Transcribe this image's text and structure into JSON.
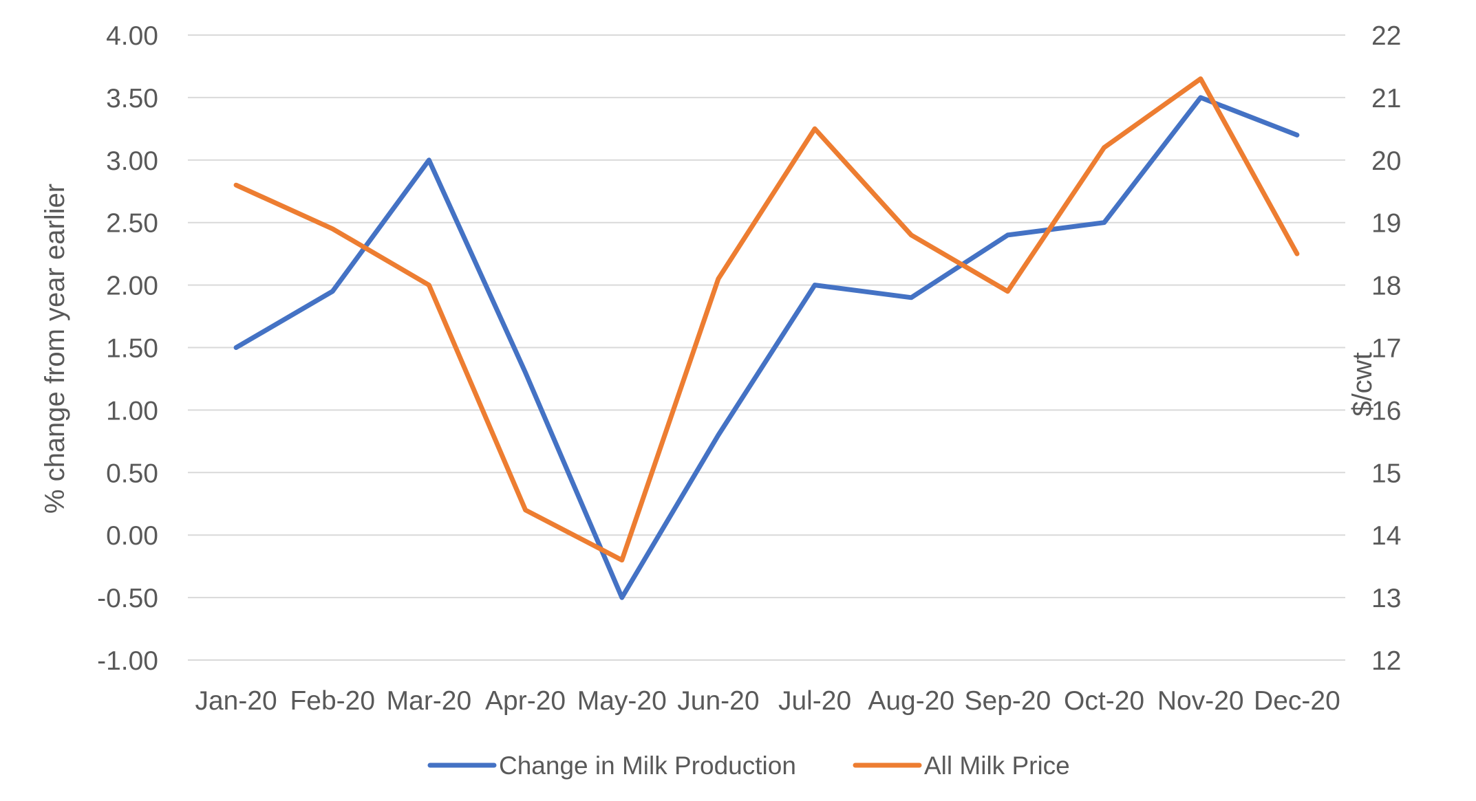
{
  "chart_data": {
    "type": "line",
    "title": "",
    "categories": [
      "Jan-20",
      "Feb-20",
      "Mar-20",
      "Apr-20",
      "May-20",
      "Jun-20",
      "Jul-20",
      "Aug-20",
      "Sep-20",
      "Oct-20",
      "Nov-20",
      "Dec-20"
    ],
    "ylabel": "% change from year earlier",
    "ylabel_right": "$/cwt",
    "ylim": [
      -1.0,
      4.0
    ],
    "ylim_right": [
      12,
      22
    ],
    "y_ticks": [
      "4.00",
      "3.50",
      "3.00",
      "2.50",
      "2.00",
      "1.50",
      "1.00",
      "0.50",
      "0.00",
      "-0.50",
      "-1.00"
    ],
    "y_ticks_right": [
      "22",
      "21",
      "20",
      "19",
      "18",
      "17",
      "16",
      "15",
      "14",
      "13",
      "12"
    ],
    "grid": true,
    "legend_position": "bottom",
    "series": [
      {
        "name": "Change in Milk Production",
        "axis": "left",
        "color": "#4472c4",
        "values": [
          1.5,
          1.95,
          3.0,
          1.3,
          -0.5,
          0.8,
          2.0,
          1.9,
          2.4,
          2.5,
          3.5,
          3.2
        ]
      },
      {
        "name": "All Milk Price",
        "axis": "right",
        "color": "#ed7d31",
        "values": [
          19.6,
          18.9,
          18.0,
          14.4,
          13.6,
          18.1,
          20.5,
          18.8,
          17.9,
          20.2,
          21.3,
          18.5
        ]
      }
    ]
  }
}
